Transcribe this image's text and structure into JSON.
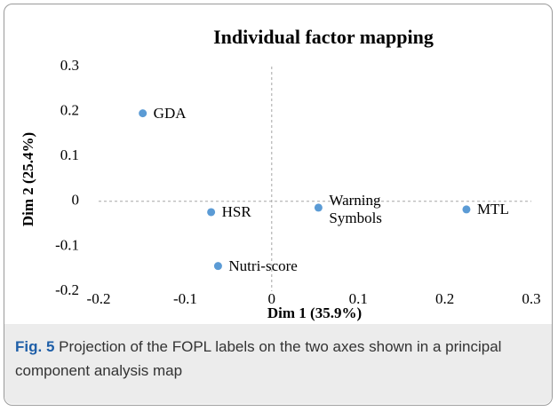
{
  "chart_data": {
    "type": "scatter",
    "title": "Individual factor mapping",
    "x_label": "Dim 1 (35.9%)",
    "y_label": "Dim 2 (25.4%)",
    "labels": [
      "GDA",
      "HSR",
      "Nutri-score",
      "Warning\nSymbols",
      "MTL"
    ],
    "x": [
      -0.149,
      -0.07,
      -0.062,
      0.054,
      0.225
    ],
    "values": [
      0.196,
      -0.024,
      -0.144,
      -0.014,
      -0.018
    ],
    "color": "#5b9bd5",
    "xlim": [
      -0.2,
      0.3
    ],
    "xticks": [
      -0.2,
      -0.1,
      0,
      0.1,
      0.2,
      0.3
    ],
    "ylim": [
      -0.2,
      0.3
    ],
    "yticks": [
      -0.2,
      -0.1,
      0,
      0.1,
      0.2,
      0.3
    ]
  },
  "caption": {
    "label": "Fig. 5",
    "text": "Projection of the FOPL labels on the two axes shown in a principal component analysis map"
  }
}
